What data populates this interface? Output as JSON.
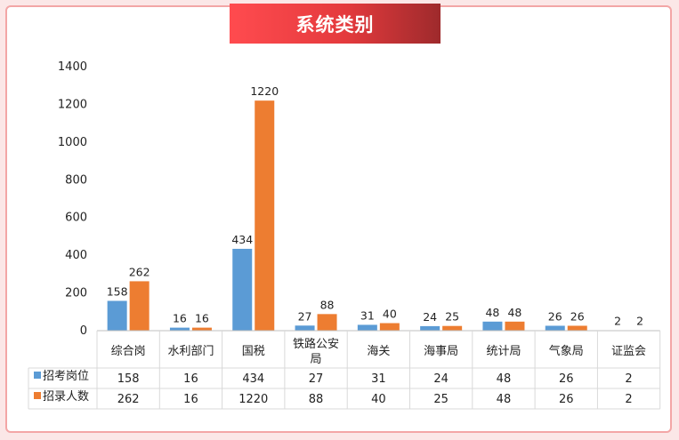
{
  "title": "系统类别",
  "chart_data": {
    "type": "bar",
    "title": "系统类别",
    "categories": [
      [
        "综合岗"
      ],
      [
        "水利部门"
      ],
      [
        "国税"
      ],
      [
        "铁路公安",
        "局"
      ],
      [
        "海关"
      ],
      [
        "海事局"
      ],
      [
        "统计局"
      ],
      [
        "气象局"
      ],
      [
        "证监会"
      ]
    ],
    "series": [
      {
        "name": "招考岗位",
        "color": "#5b9bd5",
        "values": [
          158,
          16,
          434,
          27,
          31,
          24,
          48,
          26,
          2
        ]
      },
      {
        "name": "招录人数",
        "color": "#ed7d31",
        "values": [
          262,
          16,
          1220,
          88,
          40,
          25,
          48,
          26,
          2
        ]
      }
    ],
    "ylim": [
      0,
      1400
    ],
    "yticks": [
      0,
      200,
      400,
      600,
      800,
      1000,
      1200,
      1400
    ],
    "grid": false,
    "legend": "data-table"
  }
}
